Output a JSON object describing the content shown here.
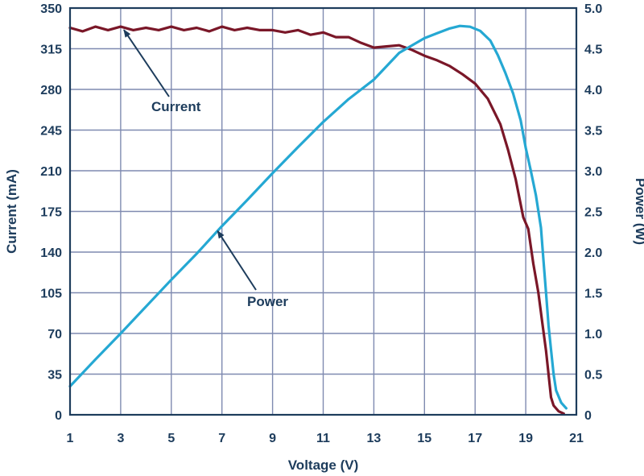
{
  "chart_data": {
    "type": "line",
    "xlabel": "Voltage (V)",
    "ylabel_left": "Current (mA)",
    "ylabel_right": "Power (W)",
    "xlim": [
      1,
      21
    ],
    "ylim_left": [
      0,
      350
    ],
    "ylim_right": [
      0,
      5.0
    ],
    "x_ticks": [
      1,
      3,
      5,
      7,
      9,
      11,
      13,
      15,
      17,
      19,
      21
    ],
    "x_tick_labels": [
      "1",
      "3",
      "5",
      "7",
      "9",
      "11",
      "13",
      "15",
      "17",
      "19",
      "21"
    ],
    "y_left_ticks": [
      0,
      35,
      70,
      105,
      140,
      175,
      210,
      245,
      280,
      315,
      350
    ],
    "y_left_tick_labels": [
      "0",
      "35",
      "70",
      "105",
      "140",
      "175",
      "210",
      "245",
      "280",
      "315",
      "350"
    ],
    "y_right_ticks": [
      0,
      0.5,
      1.0,
      1.5,
      2.0,
      2.5,
      3.0,
      3.5,
      4.0,
      4.5,
      5.0
    ],
    "y_right_tick_labels": [
      "0",
      "0.5",
      "1.0",
      "1.5",
      "2.0",
      "2.5",
      "3.0",
      "3.5",
      "4.0",
      "4.5",
      "5.0"
    ],
    "grid": true,
    "series": [
      {
        "name": "Current",
        "axis": "left",
        "color": "#7a1728",
        "points": [
          [
            1.0,
            333
          ],
          [
            1.5,
            330
          ],
          [
            2.0,
            334
          ],
          [
            2.5,
            331
          ],
          [
            3.0,
            334
          ],
          [
            3.5,
            331
          ],
          [
            4.0,
            333
          ],
          [
            4.5,
            331
          ],
          [
            5.0,
            334
          ],
          [
            5.5,
            331
          ],
          [
            6.0,
            333
          ],
          [
            6.5,
            330
          ],
          [
            7.0,
            334
          ],
          [
            7.5,
            331
          ],
          [
            8.0,
            333
          ],
          [
            8.5,
            331
          ],
          [
            9.0,
            331
          ],
          [
            9.5,
            329
          ],
          [
            10.0,
            331
          ],
          [
            10.5,
            327
          ],
          [
            11.0,
            329
          ],
          [
            11.5,
            325
          ],
          [
            12.0,
            325
          ],
          [
            12.5,
            320
          ],
          [
            13.0,
            316
          ],
          [
            13.5,
            317
          ],
          [
            14.0,
            318
          ],
          [
            14.5,
            314
          ],
          [
            15.0,
            309
          ],
          [
            15.5,
            305
          ],
          [
            16.0,
            300
          ],
          [
            16.5,
            293
          ],
          [
            17.0,
            285
          ],
          [
            17.5,
            272
          ],
          [
            18.0,
            250
          ],
          [
            18.3,
            228
          ],
          [
            18.6,
            203
          ],
          [
            18.9,
            170
          ],
          [
            19.1,
            160
          ],
          [
            19.3,
            130
          ],
          [
            19.5,
            105
          ],
          [
            19.65,
            80
          ],
          [
            19.8,
            55
          ],
          [
            19.9,
            35
          ],
          [
            20.0,
            15
          ],
          [
            20.1,
            8
          ],
          [
            20.3,
            3
          ],
          [
            20.5,
            1
          ]
        ]
      },
      {
        "name": "Power",
        "axis": "right",
        "color": "#25a8d3",
        "points": [
          [
            1.0,
            0.35
          ],
          [
            2.0,
            0.68
          ],
          [
            3.0,
            1.0
          ],
          [
            4.0,
            1.33
          ],
          [
            5.0,
            1.66
          ],
          [
            6.0,
            1.98
          ],
          [
            7.0,
            2.32
          ],
          [
            8.0,
            2.64
          ],
          [
            9.0,
            2.97
          ],
          [
            10.0,
            3.29
          ],
          [
            11.0,
            3.6
          ],
          [
            12.0,
            3.88
          ],
          [
            13.0,
            4.12
          ],
          [
            14.0,
            4.45
          ],
          [
            15.0,
            4.63
          ],
          [
            15.5,
            4.69
          ],
          [
            16.0,
            4.75
          ],
          [
            16.4,
            4.78
          ],
          [
            16.8,
            4.77
          ],
          [
            17.2,
            4.72
          ],
          [
            17.6,
            4.6
          ],
          [
            17.9,
            4.42
          ],
          [
            18.2,
            4.2
          ],
          [
            18.5,
            3.95
          ],
          [
            18.8,
            3.62
          ],
          [
            19.0,
            3.28
          ],
          [
            19.2,
            3.0
          ],
          [
            19.4,
            2.7
          ],
          [
            19.6,
            2.3
          ],
          [
            19.7,
            1.9
          ],
          [
            19.8,
            1.5
          ],
          [
            19.9,
            1.1
          ],
          [
            20.0,
            0.8
          ],
          [
            20.1,
            0.5
          ],
          [
            20.2,
            0.3
          ],
          [
            20.4,
            0.15
          ],
          [
            20.6,
            0.08
          ]
        ]
      }
    ],
    "annotations": [
      {
        "text": "Current",
        "target": [
          3.0,
          334
        ],
        "axis": "left"
      },
      {
        "text": "Power",
        "target": [
          6.7,
          2.3
        ],
        "axis": "right"
      }
    ]
  }
}
